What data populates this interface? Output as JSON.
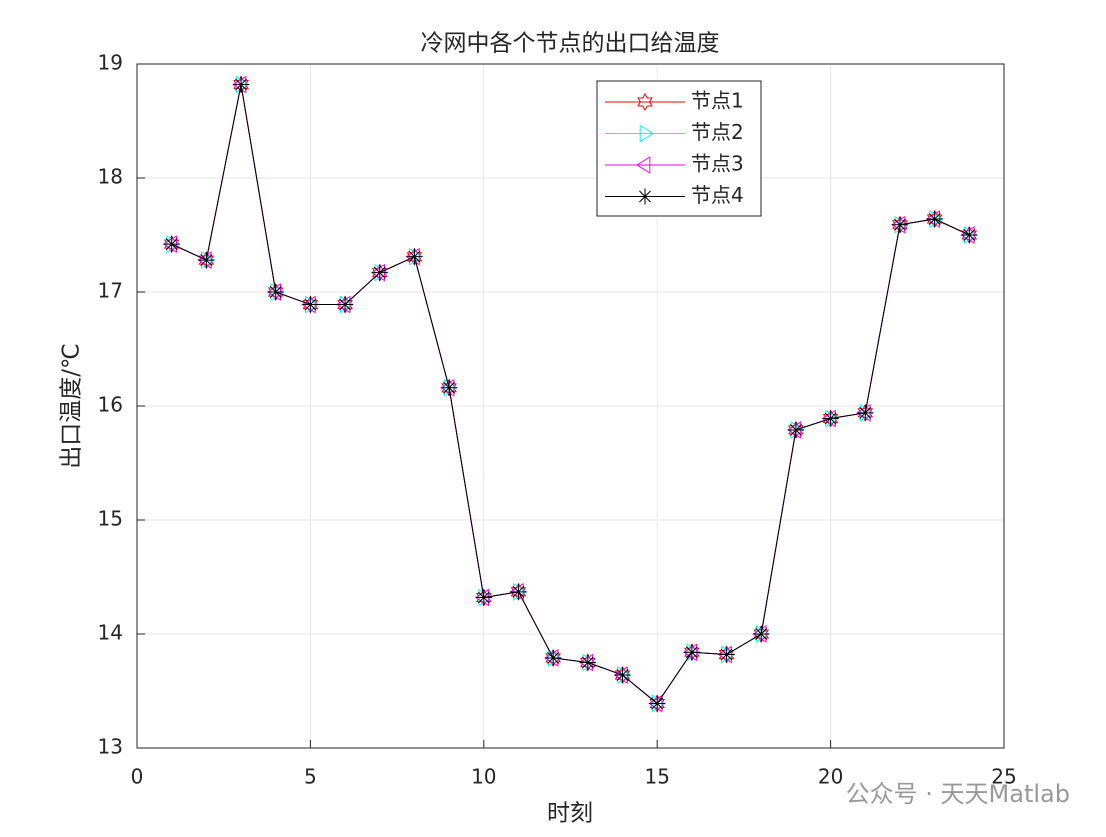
{
  "chart_data": {
    "type": "line",
    "title": "冷网中各个节点的出口给温度",
    "xlabel": "时刻",
    "ylabel": "出口温度/℃",
    "watermark": "公众号 · 天天Matlab",
    "x": [
      1,
      2,
      3,
      4,
      5,
      6,
      7,
      8,
      9,
      10,
      11,
      12,
      13,
      14,
      15,
      16,
      17,
      18,
      19,
      20,
      21,
      22,
      23,
      24
    ],
    "series": [
      {
        "name": "节点1",
        "color": "#ff0000",
        "marker": "hexagram",
        "values": [
          17.42,
          17.28,
          18.82,
          17.0,
          16.89,
          16.89,
          17.17,
          17.31,
          16.16,
          14.32,
          14.37,
          13.79,
          13.75,
          13.64,
          13.39,
          13.84,
          13.82,
          14.0,
          15.79,
          15.89,
          15.94,
          17.59,
          17.64,
          17.5
        ]
      },
      {
        "name": "节点2",
        "color": "#00ffff",
        "marker": "triangle-right",
        "values": [
          17.42,
          17.28,
          18.82,
          17.0,
          16.89,
          16.89,
          17.17,
          17.31,
          16.16,
          14.32,
          14.37,
          13.79,
          13.75,
          13.64,
          13.39,
          13.84,
          13.82,
          14.0,
          15.79,
          15.89,
          15.94,
          17.59,
          17.64,
          17.5
        ]
      },
      {
        "name": "节点3",
        "color": "#ff00ff",
        "marker": "triangle-left",
        "values": [
          17.42,
          17.28,
          18.82,
          17.0,
          16.89,
          16.89,
          17.17,
          17.31,
          16.16,
          14.32,
          14.37,
          13.79,
          13.75,
          13.64,
          13.39,
          13.84,
          13.82,
          14.0,
          15.79,
          15.89,
          15.94,
          17.59,
          17.64,
          17.5
        ]
      },
      {
        "name": "节点4",
        "color": "#000000",
        "marker": "asterisk",
        "values": [
          17.42,
          17.28,
          18.82,
          17.0,
          16.89,
          16.89,
          17.17,
          17.31,
          16.16,
          14.32,
          14.37,
          13.79,
          13.75,
          13.64,
          13.39,
          13.84,
          13.82,
          14.0,
          15.79,
          15.89,
          15.94,
          17.59,
          17.64,
          17.5
        ]
      }
    ],
    "xlim": [
      0,
      25
    ],
    "xticks": [
      0,
      5,
      10,
      15,
      20,
      25
    ],
    "ylim": [
      13,
      19
    ],
    "yticks": [
      13,
      14,
      15,
      16,
      17,
      18,
      19
    ],
    "grid": true,
    "legend": "north"
  }
}
